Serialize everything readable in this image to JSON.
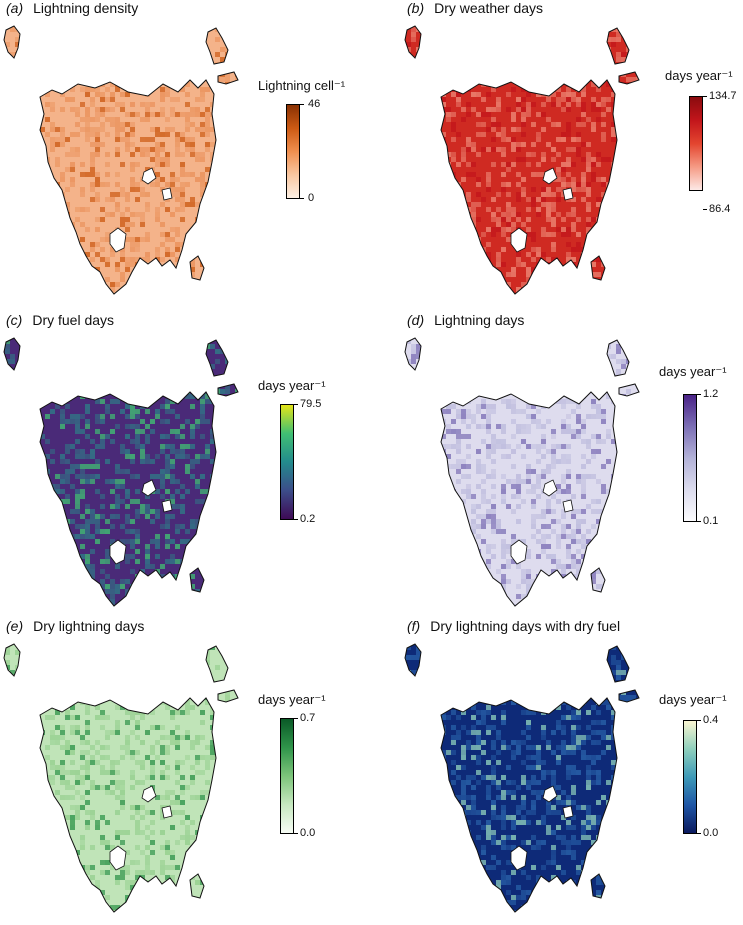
{
  "panels": [
    {
      "letter": "(a)",
      "title": "Lightning density",
      "unit": "Lightning cell⁻¹",
      "max": "46",
      "min": "0",
      "colors": [
        "#fdf0e4",
        "#f9c7a1",
        "#f08f4f",
        "#cc5a14",
        "#8a3103"
      ],
      "map_color": "#f4b38a",
      "texture": "#e88b52"
    },
    {
      "letter": "(b)",
      "title": "Dry weather days",
      "unit": "days year⁻¹",
      "max": "134.7",
      "min": "86.4",
      "colors": [
        "#fde9e6",
        "#f59a84",
        "#e3452f",
        "#c2151b",
        "#8a0b0e"
      ],
      "map_color": "#cf2a22",
      "texture": "#f39a86"
    },
    {
      "letter": "(c)",
      "title": "Dry fuel days",
      "unit": "days year⁻¹",
      "max": "79.5",
      "min": "0.2",
      "colors": [
        "#3e0a55",
        "#3c4d8a",
        "#238b8d",
        "#40bf73",
        "#e4e419"
      ],
      "map_color": "#4a2a78",
      "texture": "#2a8a8a"
    },
    {
      "letter": "(d)",
      "title": "Lightning days",
      "unit": "days year⁻¹",
      "max": "1.2",
      "min": "0.1",
      "colors": [
        "#fbfbfd",
        "#dcdcee",
        "#b3b2d8",
        "#7c6fb5",
        "#4a2387"
      ],
      "map_color": "#dedcee",
      "texture": "#b5b3d9"
    },
    {
      "letter": "(e)",
      "title": "Dry lightning days",
      "unit": "days year⁻¹",
      "max": "0.7",
      "min": "0.0",
      "colors": [
        "#f7fcf5",
        "#c6e8c0",
        "#7cc47a",
        "#2f944a",
        "#0a5a27"
      ],
      "map_color": "#c0e4b8",
      "texture": "#8ccb86"
    },
    {
      "letter": "(f)",
      "title": "Dry lightning days with dry fuel",
      "unit": "days year⁻¹",
      "max": "0.4",
      "min": "0.0",
      "colors": [
        "#0b1a5e",
        "#1f56a6",
        "#3e9ab8",
        "#8fd0bd",
        "#fbf6d2"
      ],
      "map_color": "#0e2a78",
      "texture": "#2e6db3"
    }
  ]
}
